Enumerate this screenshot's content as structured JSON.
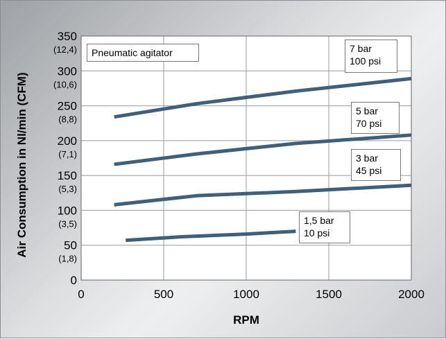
{
  "chart_data": {
    "type": "line",
    "title": "Pneumatic agitator",
    "xlabel": "RPM",
    "ylabel": "Air Consumption in Nl/min (CFM)",
    "xlim": [
      0,
      2000
    ],
    "ylim": [
      0,
      350
    ],
    "x_ticks": [
      {
        "value": 0,
        "label": "0"
      },
      {
        "value": 500,
        "label": "500"
      },
      {
        "value": 1000,
        "label": "1000"
      },
      {
        "value": 1500,
        "label": "1500"
      },
      {
        "value": 2000,
        "label": "2000"
      }
    ],
    "y_ticks": [
      {
        "value": 0,
        "label": "0",
        "sub": ""
      },
      {
        "value": 50,
        "label": "50",
        "sub": "(1,8)"
      },
      {
        "value": 100,
        "label": "100",
        "sub": "(3,5)"
      },
      {
        "value": 150,
        "label": "150",
        "sub": "(5,3)"
      },
      {
        "value": 200,
        "label": "200",
        "sub": "(7,1)"
      },
      {
        "value": 250,
        "label": "250",
        "sub": "(8,8)"
      },
      {
        "value": 300,
        "label": "300",
        "sub": "(10,6)"
      },
      {
        "value": 350,
        "label": "350",
        "sub": "(12,4)"
      }
    ],
    "grid": true,
    "line_color": "#3f5f7a",
    "series": [
      {
        "label_lines": [
          "7 bar",
          "100 psi"
        ],
        "x": [
          200,
          700,
          1300,
          2000
        ],
        "y": [
          234,
          253,
          271,
          289
        ]
      },
      {
        "label_lines": [
          "5 bar",
          "70 psi"
        ],
        "x": [
          200,
          700,
          1300,
          2000
        ],
        "y": [
          166,
          181,
          196,
          208
        ]
      },
      {
        "label_lines": [
          "3 bar",
          "45 psi"
        ],
        "x": [
          200,
          700,
          1300,
          2000
        ],
        "y": [
          108,
          121,
          127,
          136
        ]
      },
      {
        "label_lines": [
          "1,5 bar",
          "10 psi"
        ],
        "x": [
          270,
          600,
          1000,
          1300
        ],
        "y": [
          57,
          62,
          66,
          70
        ]
      }
    ]
  }
}
